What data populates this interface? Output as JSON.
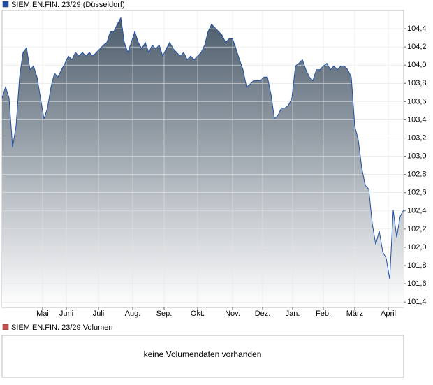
{
  "chart_data": {
    "type": "area",
    "title": "SIEM.EN.FIN. 23/29 (Düsseldorf)",
    "color": "#1f4fa8",
    "fill_top": "#4c5c6b",
    "grid": true,
    "values": [
      103.64,
      103.76,
      103.64,
      103.1,
      103.33,
      103.87,
      104.14,
      104.19,
      103.95,
      103.99,
      103.87,
      103.64,
      103.41,
      103.53,
      103.76,
      103.91,
      103.87,
      103.95,
      104.02,
      104.1,
      104.06,
      104.14,
      104.1,
      104.14,
      104.1,
      104.14,
      104.1,
      104.14,
      104.18,
      104.22,
      104.25,
      104.37,
      104.37,
      104.45,
      104.52,
      104.25,
      104.14,
      104.25,
      104.37,
      104.25,
      104.18,
      104.25,
      104.14,
      104.22,
      104.18,
      104.22,
      104.1,
      104.18,
      104.25,
      104.18,
      104.14,
      104.1,
      104.14,
      104.06,
      104.1,
      104.06,
      104.1,
      104.14,
      104.22,
      104.37,
      104.45,
      104.41,
      104.37,
      104.33,
      104.25,
      104.29,
      104.29,
      104.18,
      104.06,
      103.95,
      103.76,
      103.79,
      103.83,
      103.83,
      103.83,
      103.87,
      103.87,
      103.68,
      103.41,
      103.45,
      103.53,
      103.53,
      103.56,
      103.64,
      103.99,
      104.02,
      104.06,
      103.95,
      103.87,
      103.83,
      103.95,
      103.95,
      103.99,
      104.02,
      103.95,
      103.99,
      103.95,
      103.99,
      103.99,
      103.95,
      103.87,
      103.33,
      103.18,
      102.87,
      102.68,
      102.64,
      102.26,
      102.03,
      102.18,
      101.95,
      101.88,
      101.65,
      102.41,
      102.11,
      102.34,
      102.41
    ],
    "xlim": [
      0,
      115
    ],
    "xticks": [
      {
        "value": 11.6,
        "label": "Mai"
      },
      {
        "value": 18.4,
        "label": "Juni"
      },
      {
        "value": 27.6,
        "label": "Juli"
      },
      {
        "value": 37.4,
        "label": "Aug."
      },
      {
        "value": 46.4,
        "label": "Sep."
      },
      {
        "value": 56,
        "label": "Okt."
      },
      {
        "value": 66,
        "label": "Nov."
      },
      {
        "value": 74.6,
        "label": "Dez."
      },
      {
        "value": 83.2,
        "label": "Jan."
      },
      {
        "value": 92,
        "label": "Feb."
      },
      {
        "value": 101,
        "label": "März"
      },
      {
        "value": 110.6,
        "label": "April"
      }
    ],
    "ylim": [
      101.34,
      104.6
    ],
    "yticks": [
      {
        "value": 101.4,
        "label": "101,4"
      },
      {
        "value": 101.6,
        "label": "101,6"
      },
      {
        "value": 101.8,
        "label": "101,8"
      },
      {
        "value": 102.0,
        "label": "102,0"
      },
      {
        "value": 102.2,
        "label": "102,2"
      },
      {
        "value": 102.4,
        "label": "102,4"
      },
      {
        "value": 102.6,
        "label": "102,6"
      },
      {
        "value": 102.8,
        "label": "102,8"
      },
      {
        "value": 103.0,
        "label": "103,0"
      },
      {
        "value": 103.2,
        "label": "103,2"
      },
      {
        "value": 103.4,
        "label": "103,4"
      },
      {
        "value": 103.6,
        "label": "103,6"
      },
      {
        "value": 103.8,
        "label": "103,8"
      },
      {
        "value": 104.0,
        "label": "104,0"
      },
      {
        "value": 104.2,
        "label": "104,2"
      },
      {
        "value": 104.4,
        "label": "104,4"
      }
    ]
  },
  "volume_panel": {
    "legend": "SIEM.EN.FIN. 23/29 Volumen",
    "color": "#c8504f",
    "message": "keine Volumendaten vorhanden"
  }
}
